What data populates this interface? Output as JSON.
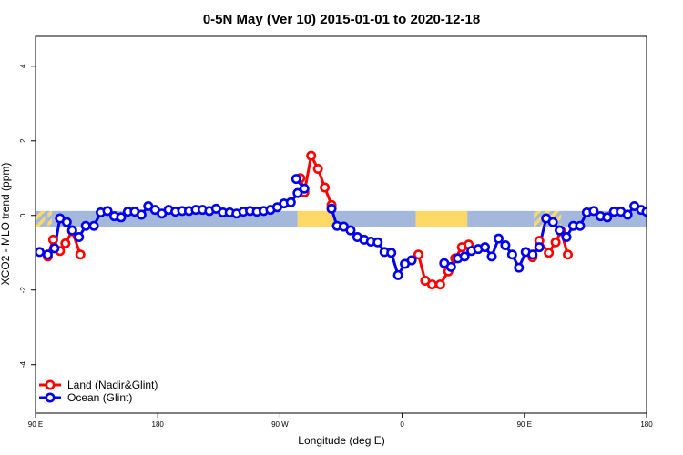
{
  "chart_data": {
    "type": "line",
    "title": "0-5N May (Ver 10)   2015-01-01 to 2020-12-18",
    "xlabel": "Longitude (deg E)",
    "ylabel": "XCO2 - MLO trend (ppm)",
    "x_ticks": [
      {
        "value": 0,
        "label": "90 E"
      },
      {
        "value": 90,
        "label": "180"
      },
      {
        "value": 180,
        "label": "90 W"
      },
      {
        "value": 270,
        "label": "0"
      },
      {
        "value": 360,
        "label": "90 E"
      },
      {
        "value": 450,
        "label": "180"
      }
    ],
    "y_ticks": [
      -4,
      -2,
      0,
      2,
      4
    ],
    "xlim": [
      0,
      450
    ],
    "ylim": [
      -5.3,
      4.8
    ],
    "grid": false,
    "legend_position": "bottom-left",
    "background_bands": [
      {
        "start": 0,
        "end": 7,
        "color": "#ffd966",
        "hatched": true
      },
      {
        "start": 7,
        "end": 9,
        "color": "#a4b8dc"
      },
      {
        "start": 9,
        "end": 12,
        "color": "#ffd966",
        "hatched": true
      },
      {
        "start": 12,
        "end": 193,
        "color": "#a4b8dc"
      },
      {
        "start": 193,
        "end": 220,
        "color": "#ffd966"
      },
      {
        "start": 220,
        "end": 280,
        "color": "#a4b8dc"
      },
      {
        "start": 280,
        "end": 318,
        "color": "#ffd966"
      },
      {
        "start": 318,
        "end": 367,
        "color": "#a4b8dc"
      },
      {
        "start": 367,
        "end": 387,
        "color": "#ffd966",
        "hatched": true
      },
      {
        "start": 387,
        "end": 450,
        "color": "#a4b8dc"
      }
    ],
    "series": [
      {
        "name": "Land (Nadir&Glint)",
        "color": "#ff0000",
        "segments": [
          [
            [
              9,
              -1.1
            ],
            [
              13,
              -0.65
            ],
            [
              18,
              -0.95
            ],
            [
              22,
              -0.75
            ],
            [
              27,
              -0.42
            ],
            [
              33,
              -1.05
            ]
          ],
          [
            [
              195,
              1.0
            ],
            [
              198,
              0.62
            ],
            [
              203,
              1.6
            ],
            [
              208,
              1.25
            ],
            [
              213,
              0.75
            ],
            [
              218,
              0.28
            ]
          ],
          [
            [
              282,
              -1.05
            ],
            [
              287,
              -1.75
            ],
            [
              292,
              -1.85
            ],
            [
              298,
              -1.85
            ],
            [
              304,
              -1.5
            ],
            [
              309,
              -1.15
            ],
            [
              314,
              -0.85
            ],
            [
              319,
              -0.78
            ]
          ],
          [
            [
              366,
              -1.12
            ],
            [
              371,
              -0.68
            ],
            [
              378,
              -1.0
            ],
            [
              383,
              -0.72
            ],
            [
              387,
              -0.42
            ],
            [
              392,
              -1.05
            ]
          ]
        ]
      },
      {
        "name": "Ocean (Glint)",
        "color": "#0000ee",
        "segments": [
          [
            [
              3,
              -0.98
            ],
            [
              9,
              -1.05
            ],
            [
              14,
              -0.88
            ],
            [
              18,
              -0.08
            ],
            [
              23,
              -0.18
            ],
            [
              27,
              -0.4
            ],
            [
              32,
              -0.58
            ],
            [
              37,
              -0.28
            ],
            [
              43,
              -0.28
            ],
            [
              48,
              0.08
            ],
            [
              53,
              0.12
            ],
            [
              58,
              -0.02
            ],
            [
              63,
              -0.05
            ],
            [
              68,
              0.1
            ],
            [
              73,
              0.1
            ],
            [
              78,
              0.02
            ],
            [
              83,
              0.25
            ],
            [
              88,
              0.15
            ],
            [
              93,
              0.05
            ],
            [
              98,
              0.15
            ],
            [
              103,
              0.1
            ],
            [
              108,
              0.12
            ],
            [
              113,
              0.12
            ],
            [
              118,
              0.15
            ],
            [
              123,
              0.15
            ],
            [
              128,
              0.12
            ],
            [
              133,
              0.18
            ],
            [
              138,
              0.08
            ],
            [
              143,
              0.08
            ],
            [
              148,
              0.05
            ],
            [
              153,
              0.1
            ],
            [
              158,
              0.12
            ],
            [
              163,
              0.1
            ],
            [
              168,
              0.12
            ],
            [
              173,
              0.15
            ],
            [
              178,
              0.22
            ],
            [
              183,
              0.32
            ],
            [
              188,
              0.35
            ],
            [
              193,
              0.6
            ],
            [
              198,
              0.72
            ],
            [
              192,
              0.98
            ]
          ],
          [
            [
              218,
              0.18
            ],
            [
              222,
              -0.28
            ],
            [
              227,
              -0.3
            ],
            [
              232,
              -0.4
            ],
            [
              237,
              -0.58
            ],
            [
              242,
              -0.65
            ],
            [
              247,
              -0.7
            ],
            [
              252,
              -0.72
            ],
            [
              257,
              -0.98
            ],
            [
              262,
              -1.0
            ],
            [
              267,
              -1.6
            ],
            [
              272,
              -1.3
            ],
            [
              277,
              -1.2
            ]
          ],
          [
            [
              301,
              -1.28
            ],
            [
              306,
              -1.38
            ],
            [
              311,
              -1.15
            ],
            [
              316,
              -1.1
            ],
            [
              321,
              -0.95
            ],
            [
              326,
              -0.9
            ],
            [
              331,
              -0.85
            ],
            [
              336,
              -1.1
            ],
            [
              341,
              -0.62
            ],
            [
              346,
              -0.8
            ],
            [
              351,
              -1.05
            ],
            [
              356,
              -1.4
            ],
            [
              361,
              -0.98
            ],
            [
              366,
              -1.05
            ],
            [
              371,
              -0.85
            ],
            [
              376,
              -0.08
            ],
            [
              381,
              -0.18
            ],
            [
              386,
              -0.4
            ],
            [
              391,
              -0.58
            ],
            [
              396,
              -0.28
            ],
            [
              401,
              -0.28
            ],
            [
              406,
              0.08
            ],
            [
              411,
              0.12
            ],
            [
              416,
              -0.02
            ],
            [
              421,
              -0.05
            ],
            [
              426,
              0.1
            ],
            [
              431,
              0.1
            ],
            [
              436,
              0.02
            ],
            [
              441,
              0.25
            ],
            [
              446,
              0.15
            ],
            [
              450,
              0.1
            ]
          ]
        ]
      }
    ]
  }
}
